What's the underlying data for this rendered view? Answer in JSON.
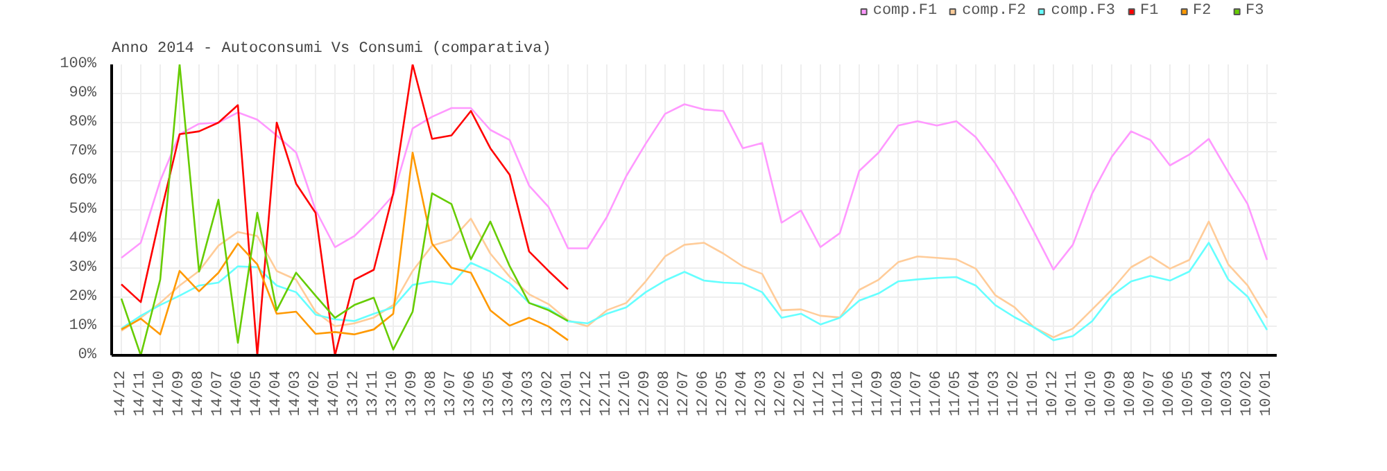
{
  "chart_data": {
    "type": "line",
    "title": "Anno 2014 - Autoconsumi Vs Consumi (comparativa)",
    "categories": [
      "14/12",
      "14/11",
      "14/10",
      "14/09",
      "14/08",
      "14/07",
      "14/06",
      "14/05",
      "14/04",
      "14/03",
      "14/02",
      "14/01",
      "13/12",
      "13/11",
      "13/10",
      "13/09",
      "13/08",
      "13/07",
      "13/06",
      "13/05",
      "13/04",
      "13/03",
      "13/02",
      "13/01",
      "12/12",
      "12/11",
      "12/10",
      "12/09",
      "12/08",
      "12/07",
      "12/06",
      "12/05",
      "12/04",
      "12/03",
      "12/02",
      "12/01",
      "11/12",
      "11/11",
      "11/10",
      "11/09",
      "11/08",
      "11/07",
      "11/06",
      "11/05",
      "11/04",
      "11/03",
      "11/02",
      "11/01",
      "10/12",
      "10/11",
      "10/10",
      "10/09",
      "10/08",
      "10/07",
      "10/06",
      "10/05",
      "10/04",
      "10/03",
      "10/02",
      "10/01"
    ],
    "series": [
      {
        "name": "comp.F1",
        "color": "#ff99ff",
        "values": [
          33.5,
          38.7,
          60,
          76,
          79.6,
          80,
          83.5,
          81,
          75.6,
          69.7,
          50,
          37.2,
          41,
          47.5,
          55,
          78,
          82,
          85,
          85,
          77.5,
          74,
          58.3,
          51,
          36.8,
          36.8,
          47.5,
          61.6,
          72.7,
          83,
          86.3,
          84.5,
          84,
          71.2,
          73,
          45.6,
          49.8,
          37.2,
          42,
          63.4,
          69.7,
          79,
          80.5,
          79,
          80.5,
          75,
          66,
          55,
          42.4,
          29.5,
          38,
          55.7,
          68.2,
          77,
          74,
          65.3,
          69,
          74.4,
          63,
          52,
          32.8
        ]
      },
      {
        "name": "comp.F2",
        "color": "#ffcc99",
        "values": [
          8.4,
          12.9,
          18,
          24,
          29,
          37.7,
          42.4,
          41,
          29,
          26,
          15,
          10,
          11,
          13,
          17.3,
          29,
          37.7,
          39.7,
          47,
          35,
          27,
          21,
          17.6,
          12,
          10,
          15.5,
          18,
          25.4,
          34,
          38,
          38.7,
          35,
          30.6,
          28,
          15.5,
          15.8,
          13.6,
          13,
          22.5,
          26,
          32,
          34,
          33.5,
          33,
          29.8,
          20.7,
          16.5,
          9.6,
          6.2,
          9.2,
          15.8,
          22.5,
          30.3,
          34,
          29.8,
          32.8,
          46,
          31.3,
          24,
          12.9
        ]
      },
      {
        "name": "comp.F3",
        "color": "#66ffff",
        "values": [
          9.2,
          13.6,
          17.3,
          20.5,
          24,
          25,
          30.6,
          30.3,
          24,
          21.7,
          14,
          12.4,
          11.8,
          14.3,
          16.5,
          24.2,
          25.4,
          24.4,
          31.8,
          28.8,
          24.7,
          18,
          16,
          11.7,
          11,
          14.3,
          16.5,
          21.7,
          25.7,
          28.7,
          25.7,
          25,
          24.7,
          21.7,
          12.9,
          14.3,
          10.6,
          12.9,
          18.8,
          21.3,
          25.4,
          26.1,
          26.6,
          26.9,
          24,
          17.3,
          13.1,
          9.6,
          5.2,
          6.6,
          11.8,
          20.5,
          25.4,
          27.3,
          25.7,
          28.8,
          38.7,
          26.1,
          20.2,
          8.7
        ]
      },
      {
        "name": "F1",
        "color": "#ff0000",
        "values": [
          24.4,
          18.3,
          48,
          76,
          77,
          80,
          86,
          0,
          80,
          59,
          49,
          0,
          26,
          29.4,
          55.7,
          100,
          74.4,
          75.6,
          84,
          71.2,
          62,
          35.7,
          29,
          22.7,
          null,
          null,
          null,
          null,
          null,
          null,
          null,
          null,
          null,
          null,
          null,
          null,
          null,
          null,
          null,
          null,
          null,
          null,
          null,
          null,
          null,
          null,
          null,
          null,
          null,
          null,
          null,
          null,
          null,
          null,
          null,
          null,
          null,
          null,
          null,
          null
        ]
      },
      {
        "name": "F2",
        "color": "#ff9900",
        "values": [
          8.9,
          12.6,
          7.2,
          29,
          22,
          28.4,
          38.4,
          31.3,
          14.3,
          15,
          7.4,
          8,
          7.2,
          8.9,
          14.3,
          69.7,
          38.4,
          30.1,
          28.4,
          15.5,
          10.2,
          12.9,
          9.9,
          5.2,
          null,
          null,
          null,
          null,
          null,
          null,
          null,
          null,
          null,
          null,
          null,
          null,
          null,
          null,
          null,
          null,
          null,
          null,
          null,
          null,
          null,
          null,
          null,
          null,
          null,
          null,
          null,
          null,
          null,
          null,
          null,
          null,
          null,
          null,
          null,
          null
        ]
      },
      {
        "name": "F3",
        "color": "#66cc00",
        "values": [
          19.5,
          0,
          26,
          100,
          28.8,
          53.5,
          4.3,
          49,
          15.5,
          28.4,
          20.5,
          12.9,
          17.3,
          19.8,
          2,
          15,
          55.7,
          52,
          33,
          46,
          30.6,
          18,
          15.5,
          11.8,
          null,
          null,
          null,
          null,
          null,
          null,
          null,
          null,
          null,
          null,
          null,
          null,
          null,
          null,
          null,
          null,
          null,
          null,
          null,
          null,
          null,
          null,
          null,
          null,
          null,
          null,
          null,
          null,
          null,
          null,
          null,
          null,
          null,
          null,
          null,
          null
        ]
      }
    ],
    "ylim": [
      0,
      100
    ],
    "yticks": [
      {
        "value": 0,
        "label": "0%"
      },
      {
        "value": 10,
        "label": "10%"
      },
      {
        "value": 20,
        "label": "20%"
      },
      {
        "value": 30,
        "label": "30%"
      },
      {
        "value": 40,
        "label": "40%"
      },
      {
        "value": 50,
        "label": "50%"
      },
      {
        "value": 60,
        "label": "60%"
      },
      {
        "value": 70,
        "label": "70%"
      },
      {
        "value": 80,
        "label": "80%"
      },
      {
        "value": 90,
        "label": "90%"
      },
      {
        "value": 100,
        "label": "100%"
      }
    ],
    "grid": true,
    "legend": "top right",
    "marker": "none",
    "line_style": "solid"
  }
}
